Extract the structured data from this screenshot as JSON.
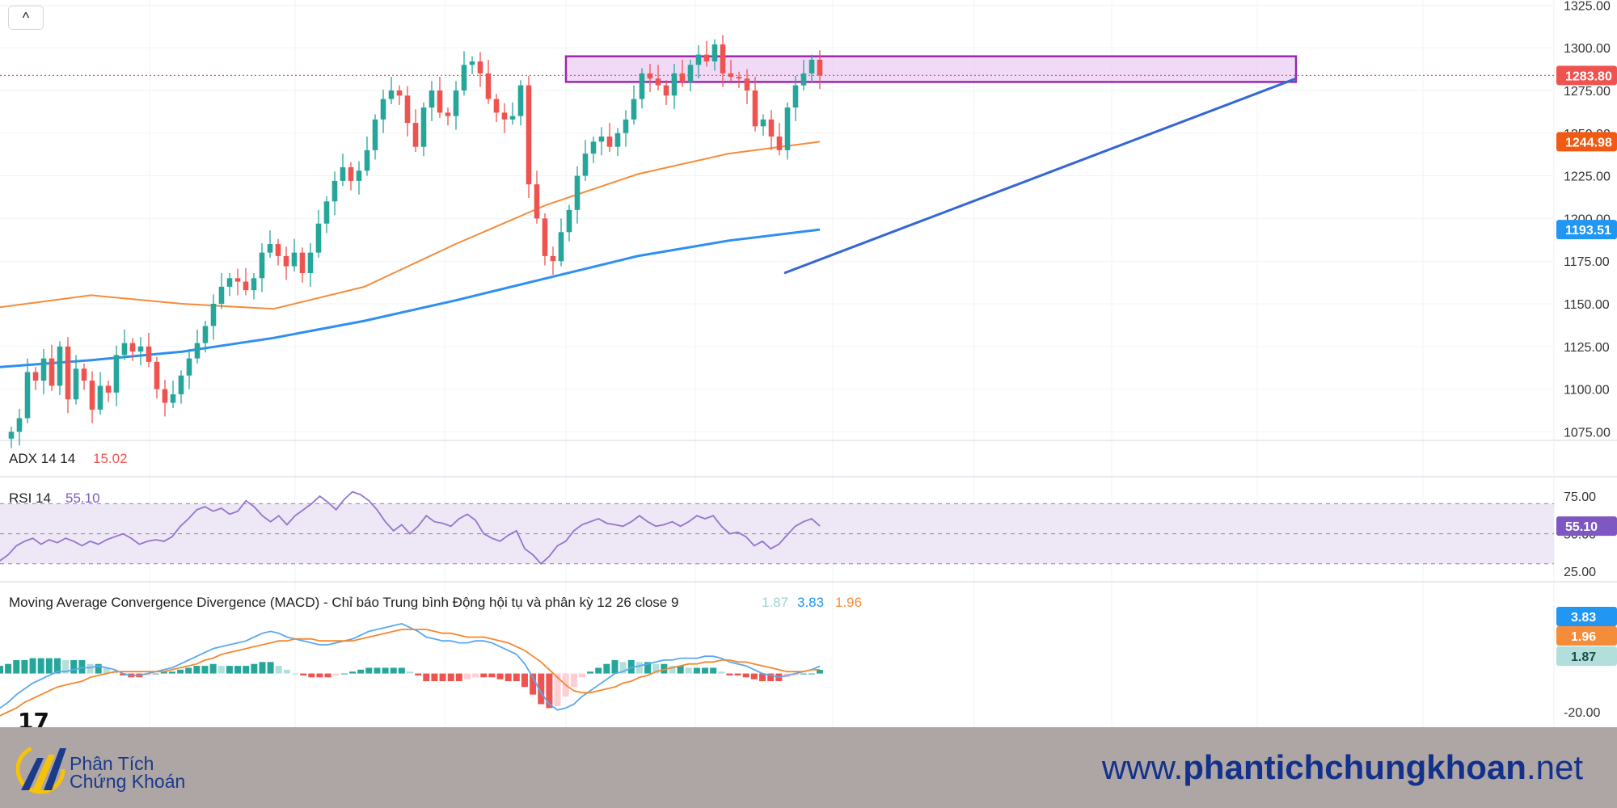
{
  "colors": {
    "up": "#26a69a",
    "down": "#ef5350",
    "sma_blue": "#2f8ff0",
    "ema_orange": "#f48c3a",
    "zone_border": "#9c27b0",
    "zone_fill": "#e9c6f3",
    "trendline": "#3566d6",
    "rsi_line": "#9575cd",
    "rsi_band": "#ede7f6",
    "macd_line": "#5aa9f0",
    "signal_line": "#f4882f",
    "hist_up_strong": "#26a69a",
    "hist_up_weak": "#b2dfdb",
    "hist_dn_strong": "#ef5350",
    "hist_dn_weak": "#ffcdd2",
    "footer_bg": "#aea5a5",
    "brand": "#1a3a8a"
  },
  "toolbar": {
    "collapse_icon": "chevron-up-icon",
    "collapse_label": "^"
  },
  "chart_data": [
    {
      "type": "candlestick",
      "axis_ticks": [
        "1325.00",
        "1300.00",
        "1275.00",
        "1250.00",
        "1225.00",
        "1200.00",
        "1175.00",
        "1150.00",
        "1125.00",
        "1100.00",
        "1075.00"
      ],
      "ylim": [
        1070,
        1328
      ],
      "price_labels": [
        {
          "text": "1283.80",
          "value": 1283.8,
          "color": "#ef5350"
        },
        {
          "text": "1244.98",
          "value": 1244.98,
          "color": "#f05a12"
        },
        {
          "text": "1193.51",
          "value": 1193.51,
          "color": "#2196f3"
        }
      ],
      "last_price": 1283.8,
      "resistance_zone": [
        1280,
        1295
      ],
      "trendline_note": "rising support from the 1167 low",
      "close_series": [
        1075,
        1083,
        1110,
        1105,
        1118,
        1102,
        1125,
        1094,
        1112,
        1105,
        1088,
        1102,
        1098,
        1120,
        1127,
        1122,
        1125,
        1116,
        1100,
        1092,
        1097,
        1108,
        1118,
        1127,
        1137,
        1150,
        1160,
        1165,
        1163,
        1158,
        1165,
        1180,
        1185,
        1178,
        1172,
        1180,
        1168,
        1180,
        1197,
        1210,
        1222,
        1230,
        1222,
        1228,
        1240,
        1258,
        1270,
        1275,
        1272,
        1256,
        1242,
        1265,
        1275,
        1262,
        1260,
        1275,
        1290,
        1292,
        1285,
        1270,
        1262,
        1258,
        1260,
        1278,
        1220,
        1200,
        1178,
        1175,
        1192,
        1205,
        1225,
        1238,
        1245,
        1248,
        1242,
        1250,
        1258,
        1270,
        1285,
        1282,
        1278,
        1272,
        1285,
        1280,
        1290,
        1296,
        1292,
        1302,
        1285,
        1283,
        1282,
        1275,
        1254,
        1258,
        1248,
        1240,
        1265,
        1278,
        1285,
        1293,
        1283.8
      ],
      "sma_blue_series": [
        1113,
        1117,
        1122,
        1130,
        1140,
        1152,
        1165,
        1178,
        1187,
        1193.51
      ],
      "ema_orange_series": [
        1148,
        1155,
        1150,
        1147,
        1160,
        1185,
        1208,
        1226,
        1238,
        1244.98
      ]
    },
    {
      "type": "line",
      "indicator": "ADX",
      "label": "ADX 14 14",
      "value_text": "15.02"
    },
    {
      "type": "line",
      "indicator": "RSI",
      "label": "RSI 14",
      "value_text": "55.10",
      "ticks": [
        "75.00",
        "50.00",
        "25.00"
      ],
      "ylim": [
        18,
        88
      ],
      "band": [
        30,
        70
      ],
      "values": [
        32,
        36,
        42,
        45,
        47,
        43,
        46,
        44,
        47,
        45,
        42,
        45,
        43,
        46,
        48,
        50,
        47,
        43,
        45,
        46,
        45,
        48,
        55,
        60,
        66,
        68,
        65,
        67,
        63,
        65,
        72,
        68,
        62,
        58,
        62,
        56,
        62,
        66,
        70,
        75,
        71,
        66,
        73,
        78,
        76,
        72,
        66,
        58,
        52,
        56,
        50,
        55,
        62,
        58,
        57,
        55,
        60,
        63,
        59,
        50,
        47,
        45,
        49,
        52,
        40,
        36,
        30,
        35,
        42,
        45,
        52,
        56,
        58,
        60,
        57,
        56,
        55,
        58,
        62,
        58,
        55,
        56,
        58,
        55,
        58,
        62,
        60,
        62,
        55,
        50,
        51,
        48,
        42,
        45,
        40,
        43,
        49,
        55,
        58,
        60,
        55.1
      ]
    },
    {
      "type": "bar",
      "indicator": "MACD",
      "label": "Moving Average Convergence Divergence (MACD) - Chỉ báo Trung bình Động hội tụ và phân kỳ 12 26 close 9",
      "values_text": [
        "1.87",
        "3.83",
        "1.96"
      ],
      "value_labels": [
        {
          "text": "3.83",
          "color": "#2196f3",
          "value": 3.83
        },
        {
          "text": "1.96",
          "color": "#f48c3a",
          "value": 1.96
        },
        {
          "text": "1.87",
          "color": "#b2dfdb",
          "value": 1.87
        }
      ],
      "ticks": [
        "-20.00"
      ],
      "ylim": [
        -28,
        31
      ],
      "macd_values": [
        -18,
        -15,
        -11,
        -8,
        -5,
        -3,
        -1,
        1,
        1,
        2,
        3,
        3,
        4,
        3,
        2,
        0,
        -1,
        -1,
        0,
        1,
        2,
        3,
        5,
        7,
        9,
        11,
        13,
        14,
        15,
        16,
        17,
        19,
        21,
        22,
        21,
        19,
        18,
        17,
        16,
        15,
        15,
        16,
        17,
        18,
        20,
        22,
        23,
        24,
        25,
        26,
        24,
        22,
        19,
        18,
        17,
        17,
        16,
        16,
        17,
        17,
        16,
        14,
        12,
        10,
        5,
        -2,
        -10,
        -16,
        -19,
        -18,
        -16,
        -12,
        -9,
        -6,
        -3,
        0,
        1,
        3,
        4,
        5,
        6,
        7,
        7,
        8,
        8,
        8,
        9,
        9,
        8,
        6,
        5,
        4,
        2,
        0,
        -1,
        -2,
        -1,
        0,
        1,
        2,
        3.83
      ],
      "signal_values": [
        -22,
        -20,
        -18,
        -15,
        -13,
        -11,
        -9,
        -7,
        -6,
        -5,
        -4,
        -2,
        -1,
        0,
        1,
        1,
        1,
        1,
        1,
        1,
        1,
        2,
        3,
        4,
        5,
        7,
        8,
        10,
        11,
        12,
        13,
        14,
        15,
        16,
        17,
        17,
        18,
        18,
        18,
        17,
        17,
        17,
        17,
        17,
        18,
        19,
        20,
        21,
        22,
        23,
        23,
        23,
        23,
        22,
        21,
        21,
        20,
        19,
        19,
        19,
        18,
        17,
        16,
        14,
        12,
        9,
        6,
        2,
        -2,
        -6,
        -9,
        -10,
        -10,
        -9,
        -8,
        -7,
        -5,
        -4,
        -2,
        -1,
        1,
        2,
        3,
        4,
        5,
        5,
        6,
        6,
        7,
        7,
        6,
        6,
        5,
        4,
        3,
        2,
        1,
        1,
        1,
        2,
        1.96
      ],
      "histogram_note": "histogram = macd − signal"
    }
  ],
  "footer": {
    "brand_line1": "Phân Tích",
    "brand_line2": "Chứng Khoán",
    "url_prefix": "www.",
    "url_bold": "phantichchungkhoan",
    "url_suffix": ".net",
    "logo_icon": "phan-tich-chung-khoan-logo-icon",
    "tv_icon": "tradingview-logo-icon",
    "tv_text": "17"
  }
}
